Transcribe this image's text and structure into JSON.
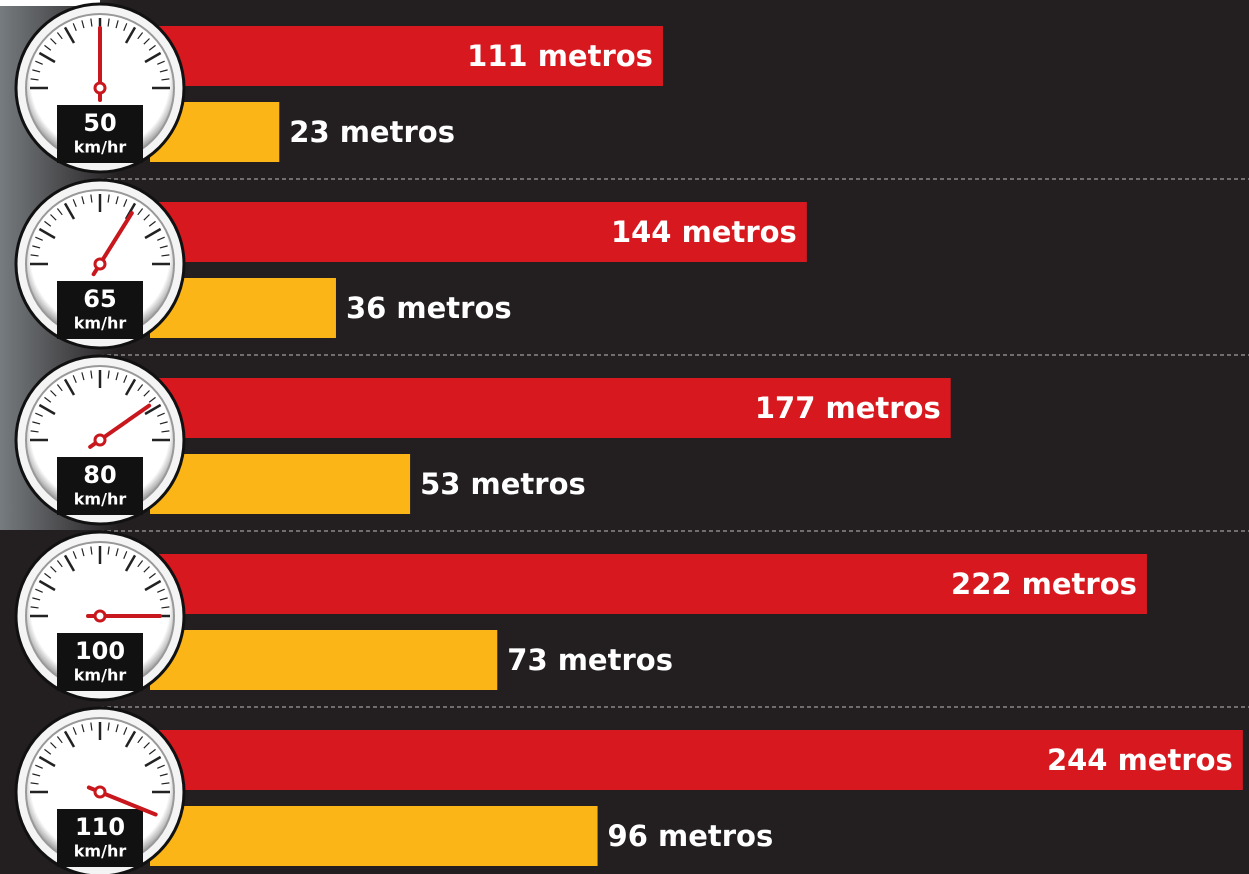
{
  "chart_data": {
    "type": "bar",
    "categories": [
      "50",
      "65",
      "80",
      "100",
      "110"
    ],
    "unit": "km/hr",
    "series": [
      {
        "color": "#d7191f",
        "values": [
          111,
          144,
          177,
          222,
          244
        ],
        "value_labels": [
          "111 metros",
          "144 metros",
          "177 metros",
          "222 metros",
          "244 metros"
        ]
      },
      {
        "color": "#fbb516",
        "values": [
          23,
          36,
          53,
          73,
          96
        ],
        "value_labels": [
          "23 metros",
          "36 metros",
          "53 metros",
          "73 metros",
          "96 metros"
        ]
      }
    ]
  }
}
